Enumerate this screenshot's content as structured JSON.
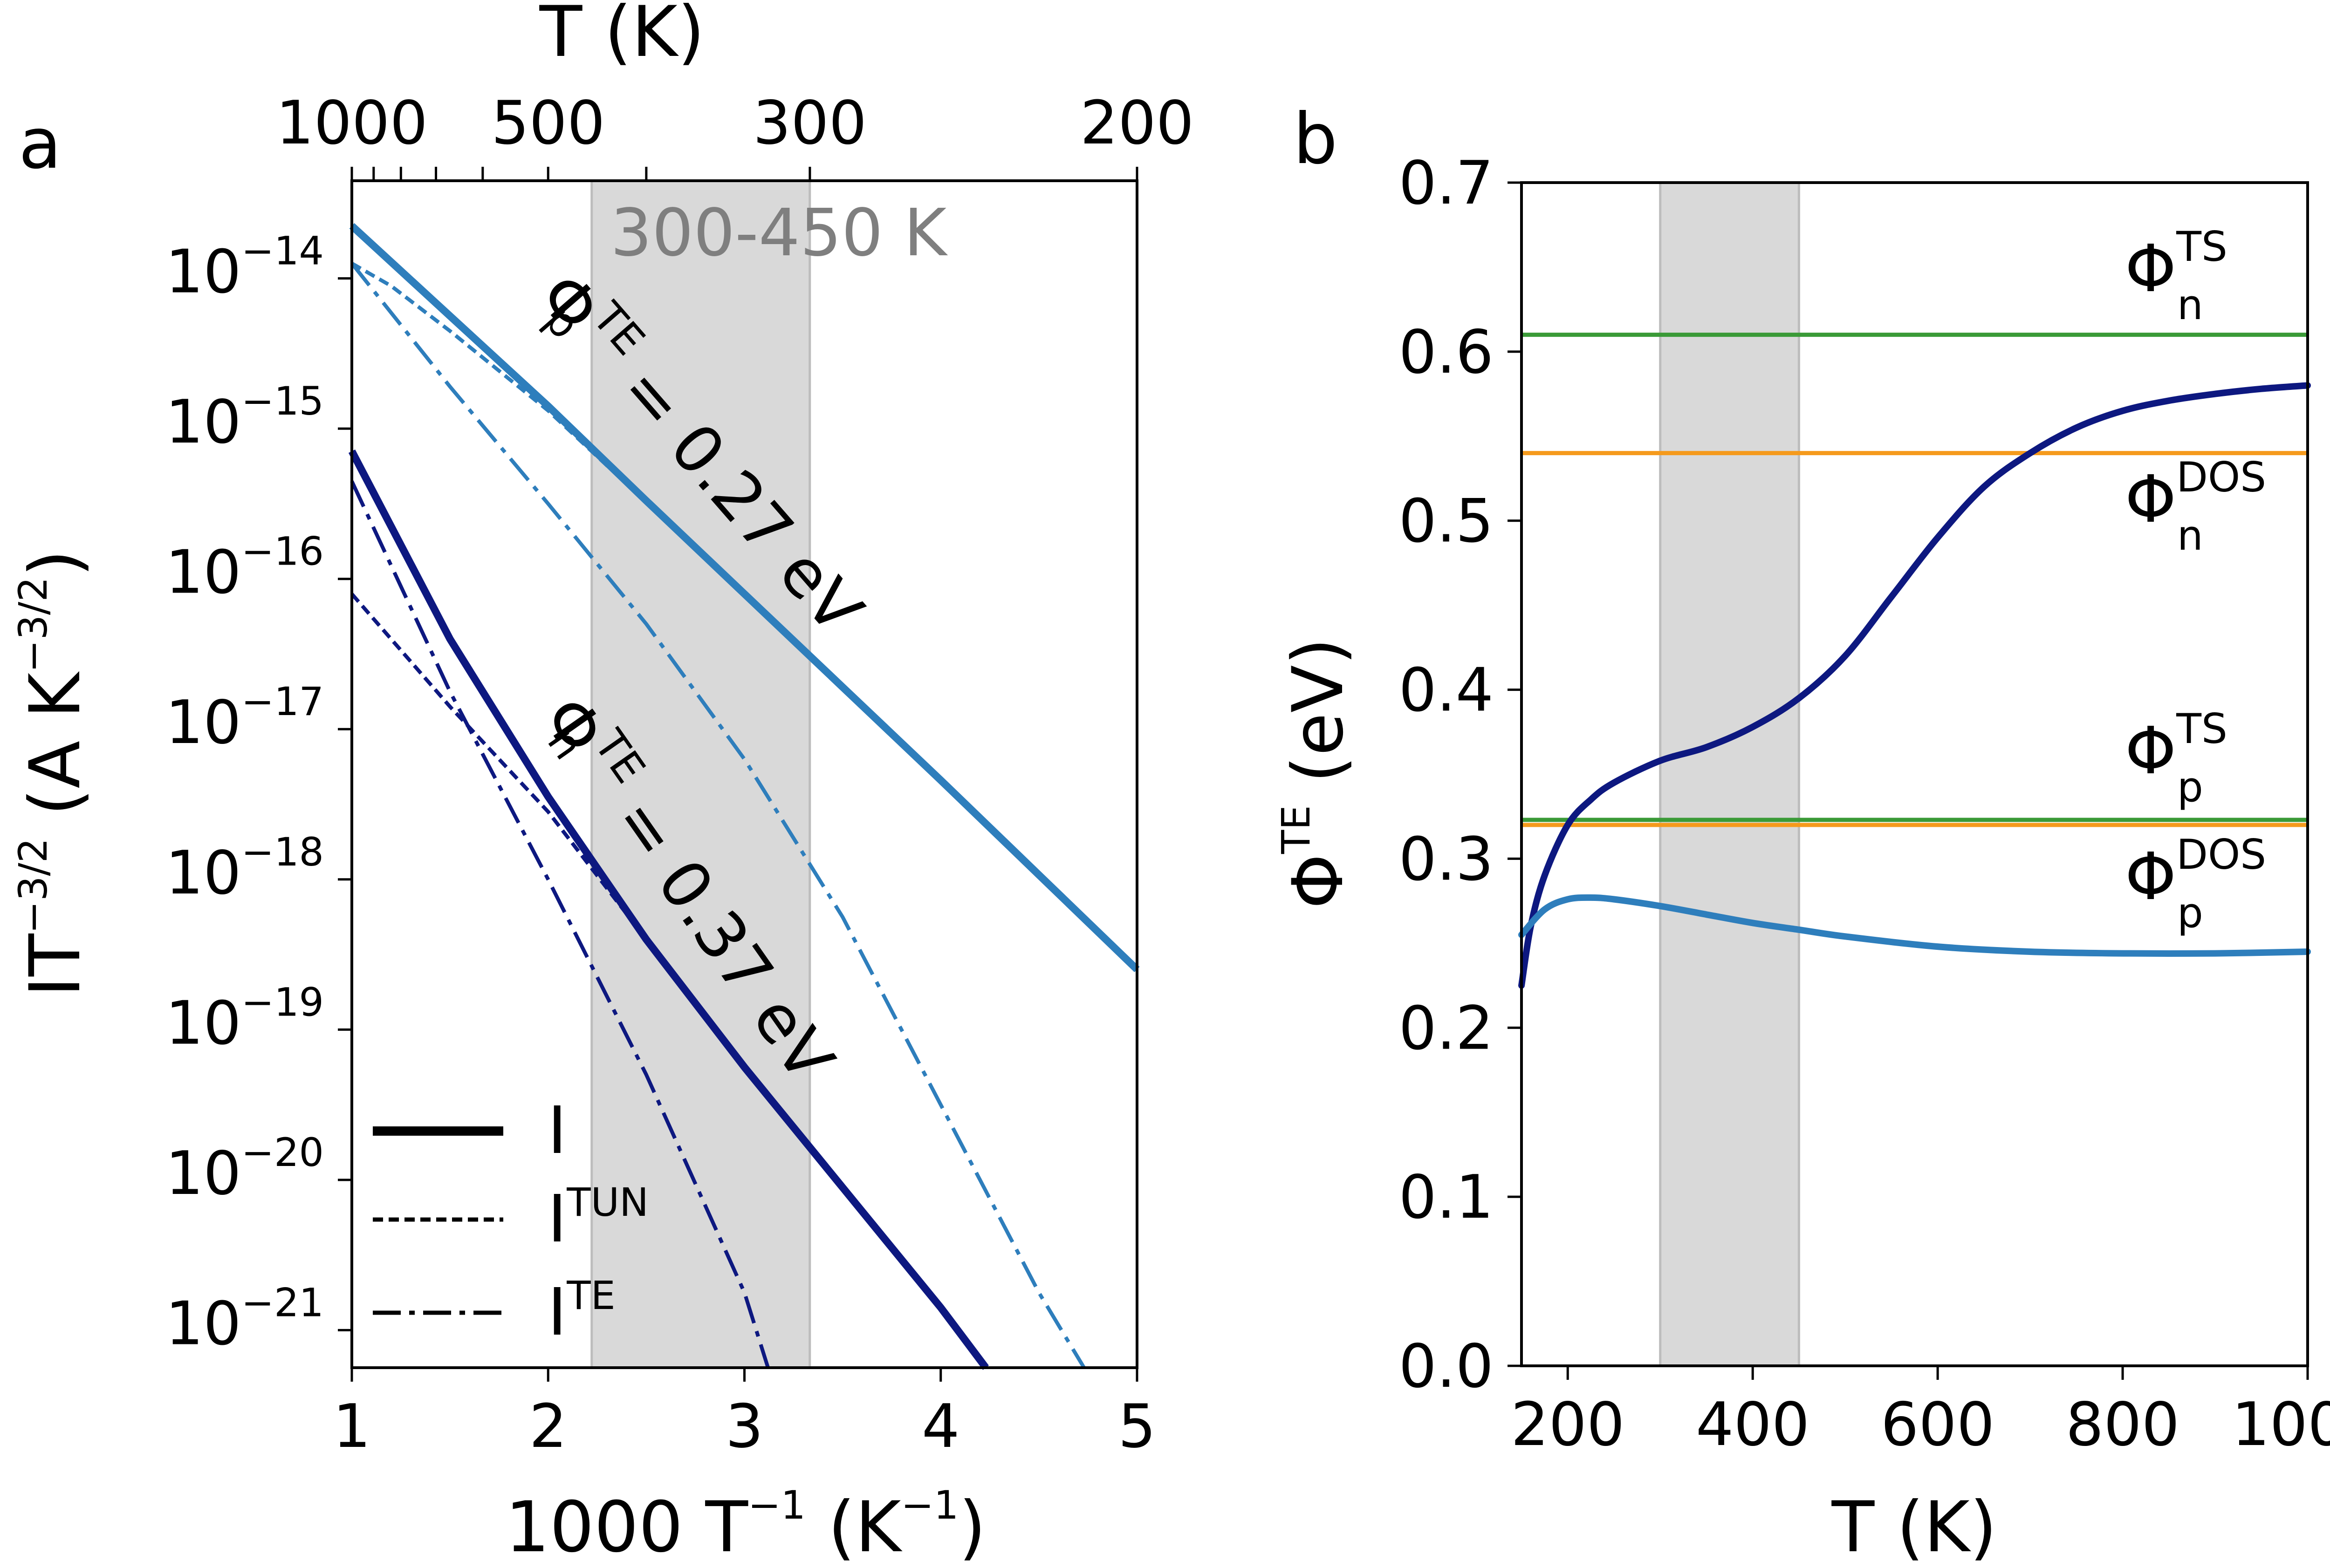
{
  "chart_data": [
    {
      "type": "line",
      "panel_label": "a",
      "xlabel_base": "1000 T",
      "xlabel_sup": "−1",
      "xlabel_unit": "(K",
      "xlabel_unit_sup": "−1",
      "xlabel_close": ")",
      "ylabel_base": "IT",
      "ylabel_sup": "−3/2",
      "ylabel_unit": "(A K",
      "ylabel_unit_sup": "−3/2",
      "ylabel_close": ")",
      "top_axis_label": "T (K)",
      "xlim": [
        1,
        5
      ],
      "ylim_log10": [
        -21.25,
        -13.35
      ],
      "x_ticks": [
        1,
        2,
        3,
        4,
        5
      ],
      "x_tick_labels": [
        "1",
        "2",
        "3",
        "4",
        "5"
      ],
      "y_ticks": [
        -14,
        -15,
        -16,
        -17,
        -18,
        -19,
        -20,
        -21
      ],
      "y_tick_base": "10",
      "y_tick_exps": [
        "−14",
        "−15",
        "−16",
        "−17",
        "−18",
        "−19",
        "−20",
        "−21"
      ],
      "top_ticks_T": [
        1000,
        900,
        800,
        700,
        600,
        500,
        400,
        300,
        200
      ],
      "top_tick_labels": [
        {
          "T": 1000,
          "label": "1000"
        },
        {
          "T": 500,
          "label": "500"
        },
        {
          "T": 300,
          "label": "300"
        },
        {
          "T": 200,
          "label": "200"
        }
      ],
      "shaded_region": {
        "x": [
          2.222,
          3.333
        ],
        "label": "300-450 K"
      },
      "annotations": [
        {
          "base": "Φ",
          "sub": "p",
          "sup": "TE",
          "rest": " = 0.27 eV",
          "color": "#000000"
        },
        {
          "base": "Φ",
          "sub": "n",
          "sup": "TE",
          "rest": " = 0.37 eV",
          "color": "#000000"
        }
      ],
      "legend": [
        {
          "label": "I",
          "sup": "",
          "style": "solid"
        },
        {
          "label": "I",
          "sup": "TUN",
          "style": "dotted"
        },
        {
          "label": "I",
          "sup": "TE",
          "style": "dashdot"
        }
      ],
      "series": [
        {
          "name": "p I",
          "color": "#2e7ebc",
          "style": "solid",
          "width": 16,
          "x": [
            1.0,
            1.5,
            2.0,
            2.5,
            3.0,
            3.5,
            4.0,
            4.5,
            5.0
          ],
          "log10y": [
            -13.65,
            -14.25,
            -14.85,
            -15.48,
            -16.1,
            -16.72,
            -17.34,
            -17.97,
            -18.6
          ]
        },
        {
          "name": "p I_TUN",
          "color": "#2e7ebc",
          "style": "dotted",
          "width": 8,
          "x": [
            1.0,
            1.2,
            1.5,
            2.0,
            2.5,
            3.0,
            3.5,
            4.0,
            4.5,
            5.0
          ],
          "log10y": [
            -13.9,
            -14.05,
            -14.35,
            -14.88,
            -15.49,
            -16.1,
            -16.72,
            -17.34,
            -17.97,
            -18.6
          ]
        },
        {
          "name": "p I_TE",
          "color": "#2e7ebc",
          "style": "dashdot",
          "width": 8,
          "x": [
            1.0,
            1.5,
            2.0,
            2.5,
            3.0,
            3.5,
            4.0,
            4.5,
            4.73
          ],
          "log10y": [
            -13.9,
            -14.72,
            -15.5,
            -16.3,
            -17.2,
            -18.25,
            -19.5,
            -20.75,
            -21.25
          ]
        },
        {
          "name": "n I",
          "color": "#0d1880",
          "style": "solid",
          "width": 16,
          "x": [
            1.0,
            1.5,
            2.0,
            2.5,
            3.0,
            3.5,
            4.0,
            4.23
          ],
          "log10y": [
            -15.15,
            -16.4,
            -17.45,
            -18.4,
            -19.25,
            -20.05,
            -20.85,
            -21.25
          ]
        },
        {
          "name": "n I_TUN",
          "color": "#0d1880",
          "style": "dotted",
          "width": 8,
          "x": [
            1.0,
            1.5,
            2.0,
            2.5,
            3.0,
            3.5,
            4.0,
            4.23
          ],
          "log10y": [
            -16.1,
            -16.85,
            -17.55,
            -18.4,
            -19.25,
            -20.05,
            -20.85,
            -21.25
          ]
        },
        {
          "name": "n I_TE",
          "color": "#0d1880",
          "style": "dashdot",
          "width": 8,
          "x": [
            1.0,
            1.5,
            2.0,
            2.5,
            3.0,
            3.12
          ],
          "log10y": [
            -15.35,
            -16.75,
            -18.0,
            -19.3,
            -20.75,
            -21.25
          ]
        }
      ]
    },
    {
      "type": "line",
      "panel_label": "b",
      "xlabel": "T (K)",
      "ylabel_base": "Φ",
      "ylabel_sup": "TE",
      "ylabel_unit": "(eV)",
      "xlim": [
        150,
        1000
      ],
      "ylim": [
        0.0,
        0.7
      ],
      "x_ticks": [
        200,
        400,
        600,
        800,
        1000
      ],
      "x_tick_labels": [
        "200",
        "400",
        "600",
        "800",
        "1000"
      ],
      "y_ticks": [
        0.0,
        0.1,
        0.2,
        0.3,
        0.4,
        0.5,
        0.6,
        0.7
      ],
      "y_tick_labels": [
        "0.0",
        "0.1",
        "0.2",
        "0.3",
        "0.4",
        "0.5",
        "0.6",
        "0.7"
      ],
      "shaded_region": {
        "x": [
          300,
          450
        ]
      },
      "hlines": [
        {
          "name": "Φn TS",
          "y": 0.61,
          "color": "#3a9a37",
          "label_base": "Φ",
          "label_sub": "n",
          "label_sup": "TS"
        },
        {
          "name": "Φn DOS",
          "y": 0.54,
          "color": "#f59a1c",
          "label_base": "Φ",
          "label_sub": "n",
          "label_sup": "DOS"
        },
        {
          "name": "Φp TS",
          "y": 0.323,
          "color": "#3a9a37",
          "label_base": "Φ",
          "label_sub": "p",
          "label_sup": "TS"
        },
        {
          "name": "Φp DOS",
          "y": 0.32,
          "color": "#f59a1c",
          "label_base": "Φ",
          "label_sub": "p",
          "label_sup": "DOS"
        }
      ],
      "series": [
        {
          "name": "Φn TE",
          "color": "#0d1880",
          "width": 14,
          "x": [
            150,
            160,
            175,
            200,
            225,
            250,
            300,
            350,
            400,
            450,
            500,
            550,
            600,
            650,
            700,
            750,
            800,
            850,
            900,
            950,
            1000
          ],
          "y": [
            0.225,
            0.26,
            0.29,
            0.32,
            0.335,
            0.345,
            0.358,
            0.366,
            0.378,
            0.395,
            0.42,
            0.455,
            0.49,
            0.52,
            0.54,
            0.555,
            0.565,
            0.571,
            0.575,
            0.578,
            0.58
          ]
        },
        {
          "name": "Φp TE",
          "color": "#2e7ebc",
          "width": 14,
          "x": [
            150,
            175,
            200,
            225,
            250,
            300,
            350,
            400,
            450,
            500,
            600,
            700,
            800,
            900,
            1000
          ],
          "y": [
            0.255,
            0.27,
            0.276,
            0.277,
            0.276,
            0.272,
            0.267,
            0.262,
            0.258,
            0.254,
            0.248,
            0.245,
            0.244,
            0.244,
            0.245
          ]
        }
      ]
    }
  ]
}
